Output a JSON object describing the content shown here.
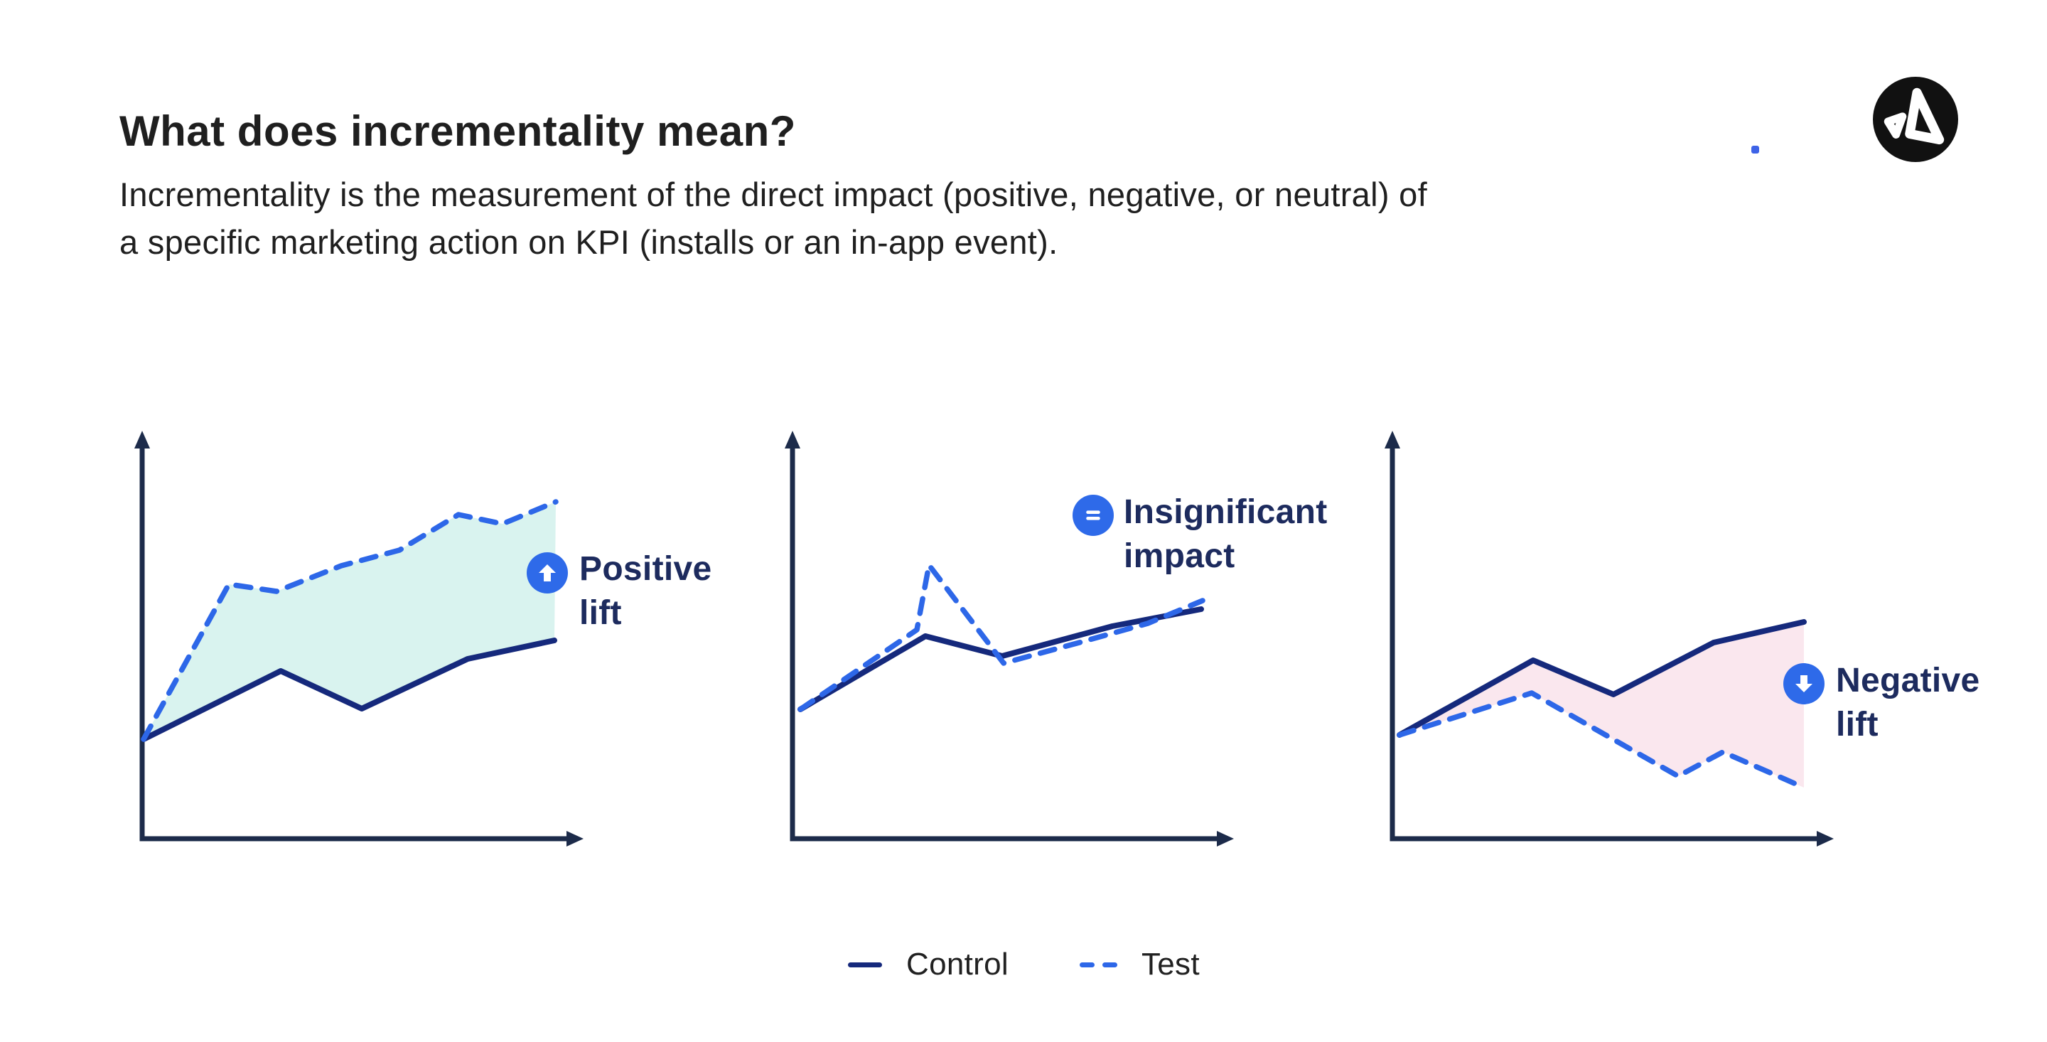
{
  "header": {
    "title": "What does incrementality mean?",
    "subtitle_line1": "Incrementality is the measurement of the direct impact (positive, negative, or neutral) of",
    "subtitle_line2": "a specific marketing action on KPI (installs or an in-app event)."
  },
  "logo": {
    "name": "appsflyer-logo"
  },
  "palette": {
    "body_text": "#1F1F1F",
    "axis": "#1C2B4A",
    "control": "#15297C",
    "test": "#2D67E8",
    "badge_bg": "#2E6AE9",
    "badge_icon": "#FFFFFF",
    "label_text": "#1D2B5E",
    "legend_text": "#212121",
    "mint": "#D9F3EF",
    "pink": "#FAE7EE",
    "logo_bg": "#111111",
    "logo_fg": "#FFFFFF",
    "accent_dot": "#3E63E7"
  },
  "legend": {
    "items": [
      {
        "name": "control",
        "label": "Control",
        "style": "solid"
      },
      {
        "name": "test",
        "label": "Test",
        "style": "dashed"
      }
    ]
  },
  "chart_data": [
    {
      "type": "line",
      "id": "positive-lift",
      "label_line1": "Positive",
      "label_line2": "lift",
      "badge_icon": "arrow-up-icon",
      "fill_between": "mint",
      "series": [
        {
          "name": "Control",
          "points": [
            [
              32,
              440
            ],
            [
              225,
              344
            ],
            [
              339,
              397
            ],
            [
              488,
              327
            ],
            [
              610,
              301
            ]
          ]
        },
        {
          "name": "Test",
          "points": [
            [
              32,
              440
            ],
            [
              152,
              222
            ],
            [
              219,
              232
            ],
            [
              310,
              196
            ],
            [
              392,
              174
            ],
            [
              475,
              124
            ],
            [
              537,
              137
            ],
            [
              612,
              106
            ]
          ]
        }
      ]
    },
    {
      "type": "line",
      "id": "insignificant-impact",
      "label_line1": "Insignificant",
      "label_line2": "impact",
      "badge_icon": "equals-icon",
      "fill_between": null,
      "series": [
        {
          "name": "Control",
          "points": [
            [
              41,
              398
            ],
            [
              217,
              295
            ],
            [
              325,
              323
            ],
            [
              480,
              281
            ],
            [
              605,
              257
            ]
          ]
        },
        {
          "name": "Test",
          "points": [
            [
              41,
              398
            ],
            [
              205,
              286
            ],
            [
              222,
              195
            ],
            [
              327,
              333
            ],
            [
              430,
              305
            ],
            [
              530,
              277
            ],
            [
              607,
              245
            ]
          ]
        }
      ]
    },
    {
      "type": "line",
      "id": "negative-lift",
      "label_line1": "Negative",
      "label_line2": "lift",
      "badge_icon": "arrow-down-icon",
      "fill_between": "pink",
      "series": [
        {
          "name": "Control",
          "points": [
            [
              40,
              434
            ],
            [
              228,
              329
            ],
            [
              341,
              377
            ],
            [
              482,
              304
            ],
            [
              609,
              275
            ]
          ]
        },
        {
          "name": "Test",
          "points": [
            [
              40,
              434
            ],
            [
              226,
              375
            ],
            [
              432,
              492
            ],
            [
              495,
              458
            ],
            [
              609,
              508
            ]
          ]
        }
      ]
    }
  ]
}
